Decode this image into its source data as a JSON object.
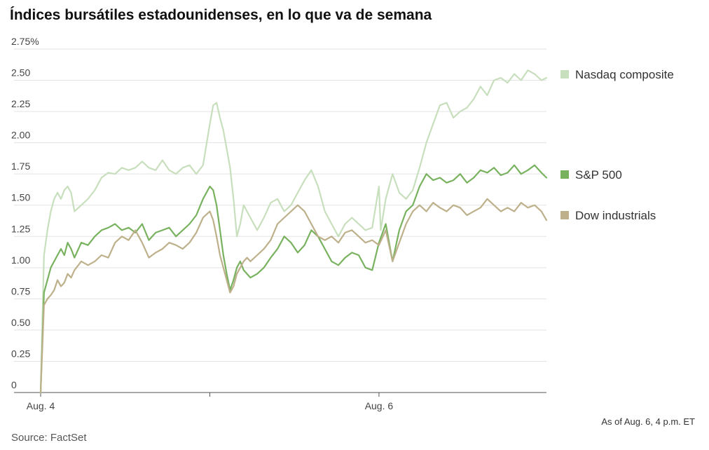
{
  "title": "Índices bursátiles estadounidenses, en lo que va de semana",
  "footnote": "As of Aug. 6, 4 p.m. ET",
  "source": "Source: FactSet",
  "chart_data": {
    "type": "line",
    "y_tick_labels": [
      "0",
      "0.25",
      "0.50",
      "0.75",
      "1.00",
      "1.25",
      "1.50",
      "1.75",
      "2.00",
      "2.25",
      "2.50",
      "2.75%"
    ],
    "y_ticks": [
      0,
      0.25,
      0.5,
      0.75,
      1.0,
      1.25,
      1.5,
      1.75,
      2.0,
      2.25,
      2.5,
      2.75
    ],
    "ylim": [
      0,
      2.75
    ],
    "x_tick_labels": [
      "Aug. 4",
      "",
      "Aug. 6"
    ],
    "x_ticks": [
      0,
      1,
      2
    ],
    "xlim": [
      0,
      2.99
    ],
    "grid": true,
    "legend_position": "right",
    "series": [
      {
        "name": "Nasdaq composite",
        "color": "#c8dfbd",
        "x": [
          0,
          0.02,
          0.04,
          0.06,
          0.08,
          0.1,
          0.12,
          0.14,
          0.16,
          0.18,
          0.2,
          0.24,
          0.28,
          0.32,
          0.36,
          0.4,
          0.44,
          0.48,
          0.52,
          0.56,
          0.6,
          0.64,
          0.68,
          0.72,
          0.76,
          0.8,
          0.84,
          0.88,
          0.92,
          0.96,
          1.0,
          1.02,
          1.04,
          1.06,
          1.08,
          1.1,
          1.12,
          1.14,
          1.16,
          1.18,
          1.2,
          1.22,
          1.24,
          1.28,
          1.32,
          1.36,
          1.4,
          1.44,
          1.48,
          1.52,
          1.56,
          1.6,
          1.64,
          1.68,
          1.72,
          1.76,
          1.8,
          1.84,
          1.88,
          1.92,
          1.96,
          2.0,
          2.01,
          2.04,
          2.08,
          2.12,
          2.16,
          2.2,
          2.24,
          2.28,
          2.32,
          2.36,
          2.4,
          2.44,
          2.48,
          2.52,
          2.56,
          2.6,
          2.64,
          2.68,
          2.72,
          2.76,
          2.8,
          2.84,
          2.88,
          2.92,
          2.96,
          2.99
        ],
        "values": [
          0,
          1.1,
          1.3,
          1.45,
          1.55,
          1.6,
          1.55,
          1.62,
          1.65,
          1.6,
          1.45,
          1.5,
          1.55,
          1.62,
          1.72,
          1.76,
          1.75,
          1.8,
          1.78,
          1.8,
          1.85,
          1.8,
          1.78,
          1.86,
          1.78,
          1.75,
          1.8,
          1.82,
          1.75,
          1.82,
          2.15,
          2.3,
          2.32,
          2.2,
          2.1,
          1.95,
          1.8,
          1.55,
          1.25,
          1.35,
          1.5,
          1.45,
          1.4,
          1.3,
          1.4,
          1.52,
          1.55,
          1.45,
          1.5,
          1.6,
          1.7,
          1.78,
          1.65,
          1.45,
          1.35,
          1.25,
          1.35,
          1.4,
          1.35,
          1.3,
          1.32,
          1.65,
          1.3,
          1.55,
          1.75,
          1.6,
          1.55,
          1.62,
          1.8,
          2.0,
          2.15,
          2.3,
          2.32,
          2.2,
          2.25,
          2.28,
          2.35,
          2.45,
          2.38,
          2.5,
          2.52,
          2.48,
          2.55,
          2.5,
          2.58,
          2.55,
          2.5,
          2.52
        ]
      },
      {
        "name": "S&P 500",
        "color": "#78b25f",
        "x": [
          0,
          0.02,
          0.04,
          0.06,
          0.08,
          0.1,
          0.12,
          0.14,
          0.16,
          0.18,
          0.2,
          0.24,
          0.28,
          0.32,
          0.36,
          0.4,
          0.44,
          0.48,
          0.52,
          0.56,
          0.6,
          0.64,
          0.68,
          0.72,
          0.76,
          0.8,
          0.84,
          0.88,
          0.92,
          0.96,
          1.0,
          1.02,
          1.04,
          1.06,
          1.08,
          1.1,
          1.12,
          1.14,
          1.16,
          1.18,
          1.2,
          1.22,
          1.24,
          1.28,
          1.32,
          1.36,
          1.4,
          1.44,
          1.48,
          1.52,
          1.56,
          1.6,
          1.64,
          1.68,
          1.72,
          1.76,
          1.8,
          1.84,
          1.88,
          1.92,
          1.96,
          2.0,
          2.04,
          2.08,
          2.12,
          2.16,
          2.2,
          2.24,
          2.28,
          2.32,
          2.36,
          2.4,
          2.44,
          2.48,
          2.52,
          2.56,
          2.6,
          2.64,
          2.68,
          2.72,
          2.76,
          2.8,
          2.84,
          2.88,
          2.92,
          2.96,
          2.99
        ],
        "values": [
          0,
          0.8,
          0.9,
          1.0,
          1.05,
          1.1,
          1.15,
          1.1,
          1.2,
          1.15,
          1.08,
          1.2,
          1.18,
          1.25,
          1.3,
          1.32,
          1.35,
          1.3,
          1.32,
          1.28,
          1.35,
          1.22,
          1.28,
          1.3,
          1.32,
          1.25,
          1.3,
          1.35,
          1.42,
          1.55,
          1.65,
          1.62,
          1.5,
          1.3,
          1.1,
          0.95,
          0.82,
          0.9,
          1.0,
          1.05,
          0.98,
          0.95,
          0.92,
          0.95,
          1.0,
          1.08,
          1.15,
          1.25,
          1.2,
          1.12,
          1.18,
          1.3,
          1.25,
          1.15,
          1.05,
          1.02,
          1.08,
          1.12,
          1.1,
          1.0,
          0.98,
          1.2,
          1.35,
          1.05,
          1.3,
          1.45,
          1.5,
          1.65,
          1.75,
          1.7,
          1.72,
          1.68,
          1.7,
          1.75,
          1.68,
          1.72,
          1.78,
          1.76,
          1.8,
          1.74,
          1.76,
          1.82,
          1.75,
          1.78,
          1.82,
          1.76,
          1.72
        ]
      },
      {
        "name": "Dow industrials",
        "color": "#bdb08b",
        "x": [
          0,
          0.02,
          0.04,
          0.06,
          0.08,
          0.1,
          0.12,
          0.14,
          0.16,
          0.18,
          0.2,
          0.24,
          0.28,
          0.32,
          0.36,
          0.4,
          0.44,
          0.48,
          0.52,
          0.56,
          0.6,
          0.64,
          0.68,
          0.72,
          0.76,
          0.8,
          0.84,
          0.88,
          0.92,
          0.96,
          1.0,
          1.02,
          1.04,
          1.06,
          1.08,
          1.1,
          1.12,
          1.14,
          1.16,
          1.18,
          1.2,
          1.22,
          1.24,
          1.28,
          1.32,
          1.36,
          1.4,
          1.44,
          1.48,
          1.52,
          1.56,
          1.6,
          1.64,
          1.68,
          1.72,
          1.76,
          1.8,
          1.84,
          1.88,
          1.92,
          1.96,
          2.0,
          2.04,
          2.08,
          2.12,
          2.16,
          2.2,
          2.24,
          2.28,
          2.32,
          2.36,
          2.4,
          2.44,
          2.48,
          2.52,
          2.56,
          2.6,
          2.64,
          2.68,
          2.72,
          2.76,
          2.8,
          2.84,
          2.88,
          2.92,
          2.96,
          2.99
        ],
        "values": [
          0,
          0.7,
          0.75,
          0.78,
          0.82,
          0.9,
          0.85,
          0.88,
          0.95,
          0.92,
          0.98,
          1.05,
          1.02,
          1.05,
          1.1,
          1.08,
          1.2,
          1.25,
          1.22,
          1.3,
          1.2,
          1.08,
          1.12,
          1.15,
          1.2,
          1.18,
          1.15,
          1.2,
          1.28,
          1.4,
          1.45,
          1.38,
          1.25,
          1.1,
          1.0,
          0.9,
          0.8,
          0.85,
          0.95,
          1.0,
          1.05,
          1.08,
          1.05,
          1.1,
          1.15,
          1.22,
          1.35,
          1.4,
          1.45,
          1.5,
          1.45,
          1.35,
          1.25,
          1.22,
          1.25,
          1.2,
          1.28,
          1.3,
          1.25,
          1.2,
          1.22,
          1.18,
          1.3,
          1.05,
          1.2,
          1.35,
          1.45,
          1.5,
          1.45,
          1.52,
          1.48,
          1.45,
          1.5,
          1.48,
          1.42,
          1.45,
          1.48,
          1.55,
          1.5,
          1.45,
          1.48,
          1.45,
          1.52,
          1.48,
          1.5,
          1.45,
          1.38
        ]
      }
    ]
  }
}
